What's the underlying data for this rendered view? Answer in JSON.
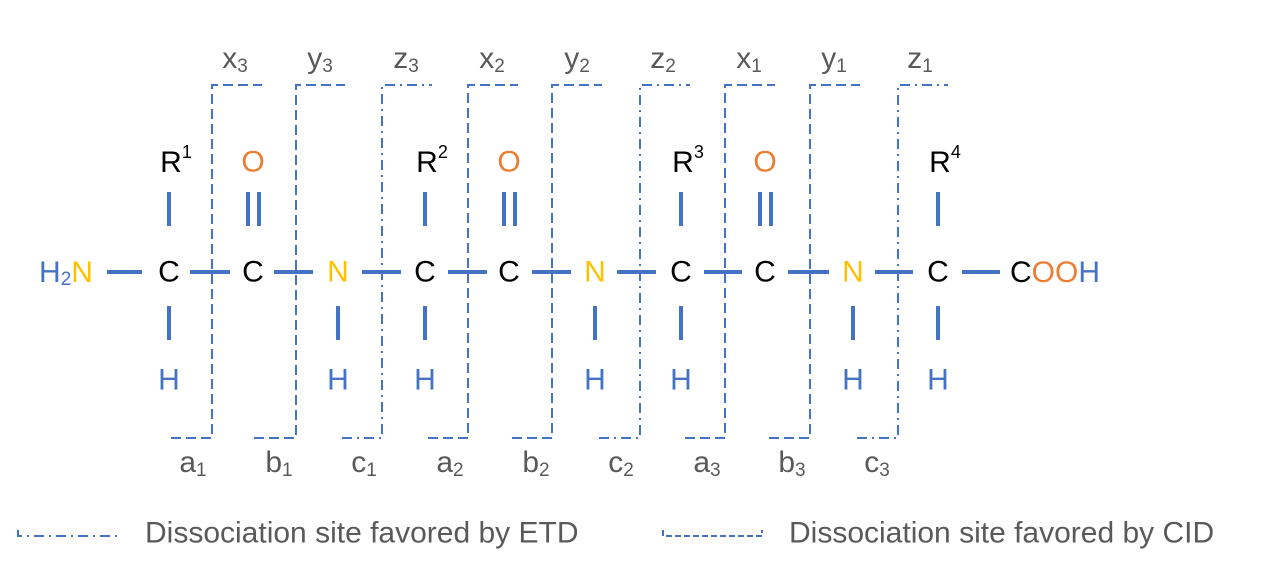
{
  "colors": {
    "bond": "#4472C4",
    "carbon": "#000000",
    "nitrogen": "#FFC000",
    "oxygen": "#ED7D31",
    "hydrogen": "#4472C4",
    "fragment_line": "#4472C4",
    "label_gray": "#595959"
  },
  "molecule": {
    "n_terminus": {
      "h": "H",
      "h_sub": "2",
      "n": "N"
    },
    "c_terminus": {
      "c": "C",
      "o1": "O",
      "o2": "O",
      "h": "H"
    },
    "carbon": "C",
    "nitrogen": "N",
    "oxygen": "O",
    "hydrogen": "H",
    "side_chains": [
      {
        "r": "R",
        "sup": "1"
      },
      {
        "r": "R",
        "sup": "2"
      },
      {
        "r": "R",
        "sup": "3"
      },
      {
        "r": "R",
        "sup": "4"
      }
    ]
  },
  "fragments": {
    "top": [
      {
        "letter": "x",
        "index": "3",
        "style": "CID"
      },
      {
        "letter": "y",
        "index": "3",
        "style": "CID"
      },
      {
        "letter": "z",
        "index": "3",
        "style": "ETD"
      },
      {
        "letter": "x",
        "index": "2",
        "style": "CID"
      },
      {
        "letter": "y",
        "index": "2",
        "style": "CID"
      },
      {
        "letter": "z",
        "index": "2",
        "style": "ETD"
      },
      {
        "letter": "x",
        "index": "1",
        "style": "CID"
      },
      {
        "letter": "y",
        "index": "1",
        "style": "CID"
      },
      {
        "letter": "z",
        "index": "1",
        "style": "ETD"
      }
    ],
    "bottom": [
      {
        "letter": "a",
        "index": "1",
        "style": "CID"
      },
      {
        "letter": "b",
        "index": "1",
        "style": "CID"
      },
      {
        "letter": "c",
        "index": "1",
        "style": "ETD"
      },
      {
        "letter": "a",
        "index": "2",
        "style": "CID"
      },
      {
        "letter": "b",
        "index": "2",
        "style": "CID"
      },
      {
        "letter": "c",
        "index": "2",
        "style": "ETD"
      },
      {
        "letter": "a",
        "index": "3",
        "style": "CID"
      },
      {
        "letter": "b",
        "index": "3",
        "style": "CID"
      },
      {
        "letter": "c",
        "index": "3",
        "style": "ETD"
      }
    ]
  },
  "legend": {
    "etd": "Dissociation site favored by ETD",
    "cid": "Dissociation site favored by CID"
  }
}
